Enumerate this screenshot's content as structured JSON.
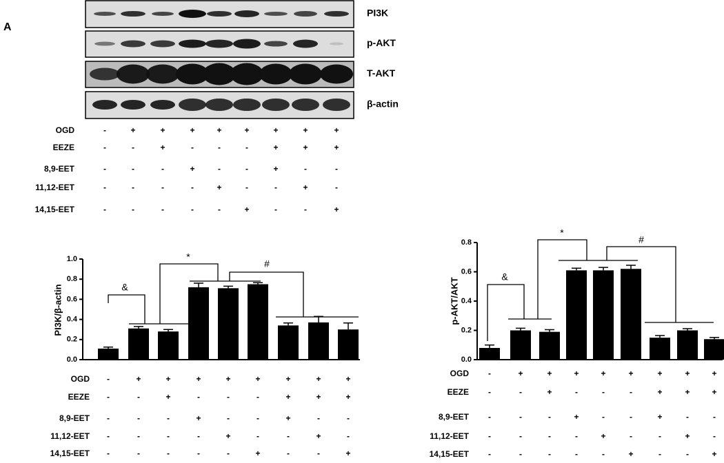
{
  "panel_label": "A",
  "blot": {
    "bands": [
      "PI3K",
      "p-AKT",
      "T-AKT",
      "β-actin"
    ],
    "treatments": [
      {
        "name": "OGD",
        "signs": [
          "-",
          "+",
          "+",
          "+",
          "+",
          "+",
          "+",
          "+",
          "+"
        ]
      },
      {
        "name": "EEZE",
        "signs": [
          "-",
          "-",
          "+",
          "-",
          "-",
          "-",
          "+",
          "+",
          "+"
        ]
      },
      {
        "name": "8,9-EET",
        "signs": [
          "-",
          "-",
          "-",
          "+",
          "-",
          "-",
          "+",
          "-",
          "-"
        ]
      },
      {
        "name": "11,12-EET",
        "signs": [
          "-",
          "-",
          "-",
          "-",
          "+",
          "-",
          "-",
          "+",
          "-"
        ]
      },
      {
        "name": "14,15-EET",
        "signs": [
          "-",
          "-",
          "-",
          "-",
          "-",
          "+",
          "-",
          "-",
          "+"
        ]
      }
    ]
  },
  "chart_data": [
    {
      "type": "bar",
      "y_label": "PI3K/β-actin",
      "color": "#000000",
      "values": [
        0.11,
        0.31,
        0.28,
        0.72,
        0.71,
        0.75,
        0.34,
        0.37,
        0.3
      ],
      "errors": [
        0.015,
        0.02,
        0.02,
        0.04,
        0.02,
        0.015,
        0.025,
        0.06,
        0.065
      ],
      "ylim": [
        0,
        1
      ],
      "yticks": [
        {
          "value": 0,
          "label": "0.0"
        },
        0.2,
        0.4,
        0.6,
        0.8,
        {
          "value": 1,
          "label": "1.0"
        }
      ],
      "annotations": [
        "&",
        "*",
        "#"
      ],
      "treatments": [
        {
          "name": "OGD",
          "signs": [
            "-",
            "+",
            "+",
            "+",
            "+",
            "+",
            "+",
            "+",
            "+"
          ]
        },
        {
          "name": "EEZE",
          "signs": [
            "-",
            "-",
            "+",
            "-",
            "-",
            "-",
            "+",
            "+",
            "+"
          ]
        },
        {
          "name": "8,9-EET",
          "signs": [
            "-",
            "-",
            "-",
            "+",
            "-",
            "-",
            "+",
            "-",
            "-"
          ]
        },
        {
          "name": "11,12-EET",
          "signs": [
            "-",
            "-",
            "-",
            "-",
            "+",
            "-",
            "-",
            "+",
            "-"
          ]
        },
        {
          "name": "14,15-EET",
          "signs": [
            "-",
            "-",
            "-",
            "-",
            "-",
            "+",
            "-",
            "-",
            "+"
          ]
        }
      ]
    },
    {
      "type": "bar",
      "y_label": "p-AKT/AKT",
      "color": "#000000",
      "values": [
        0.08,
        0.2,
        0.19,
        0.61,
        0.61,
        0.62,
        0.15,
        0.2,
        0.14
      ],
      "errors": [
        0.02,
        0.015,
        0.015,
        0.015,
        0.02,
        0.025,
        0.015,
        0.012,
        0.012
      ],
      "ylim": [
        0,
        0.8
      ],
      "yticks": [
        {
          "value": 0,
          "label": "0.0"
        },
        0.2,
        0.4,
        0.6,
        0.8
      ],
      "annotations": [
        "&",
        "*",
        "#"
      ],
      "treatments": [
        {
          "name": "OGD",
          "signs": [
            "-",
            "+",
            "+",
            "+",
            "+",
            "+",
            "+",
            "+",
            "+"
          ]
        },
        {
          "name": "EEZE",
          "signs": [
            "-",
            "-",
            "+",
            "-",
            "-",
            "-",
            "+",
            "+",
            "+"
          ]
        },
        {
          "name": "8,9-EET",
          "signs": [
            "-",
            "-",
            "-",
            "+",
            "-",
            "-",
            "+",
            "-",
            "-"
          ]
        },
        {
          "name": "11,12-EET",
          "signs": [
            "-",
            "-",
            "-",
            "-",
            "+",
            "-",
            "-",
            "+",
            "-"
          ]
        },
        {
          "name": "14,15-EET",
          "signs": [
            "-",
            "-",
            "-",
            "-",
            "-",
            "+",
            "-",
            "-",
            "+"
          ]
        }
      ]
    }
  ]
}
